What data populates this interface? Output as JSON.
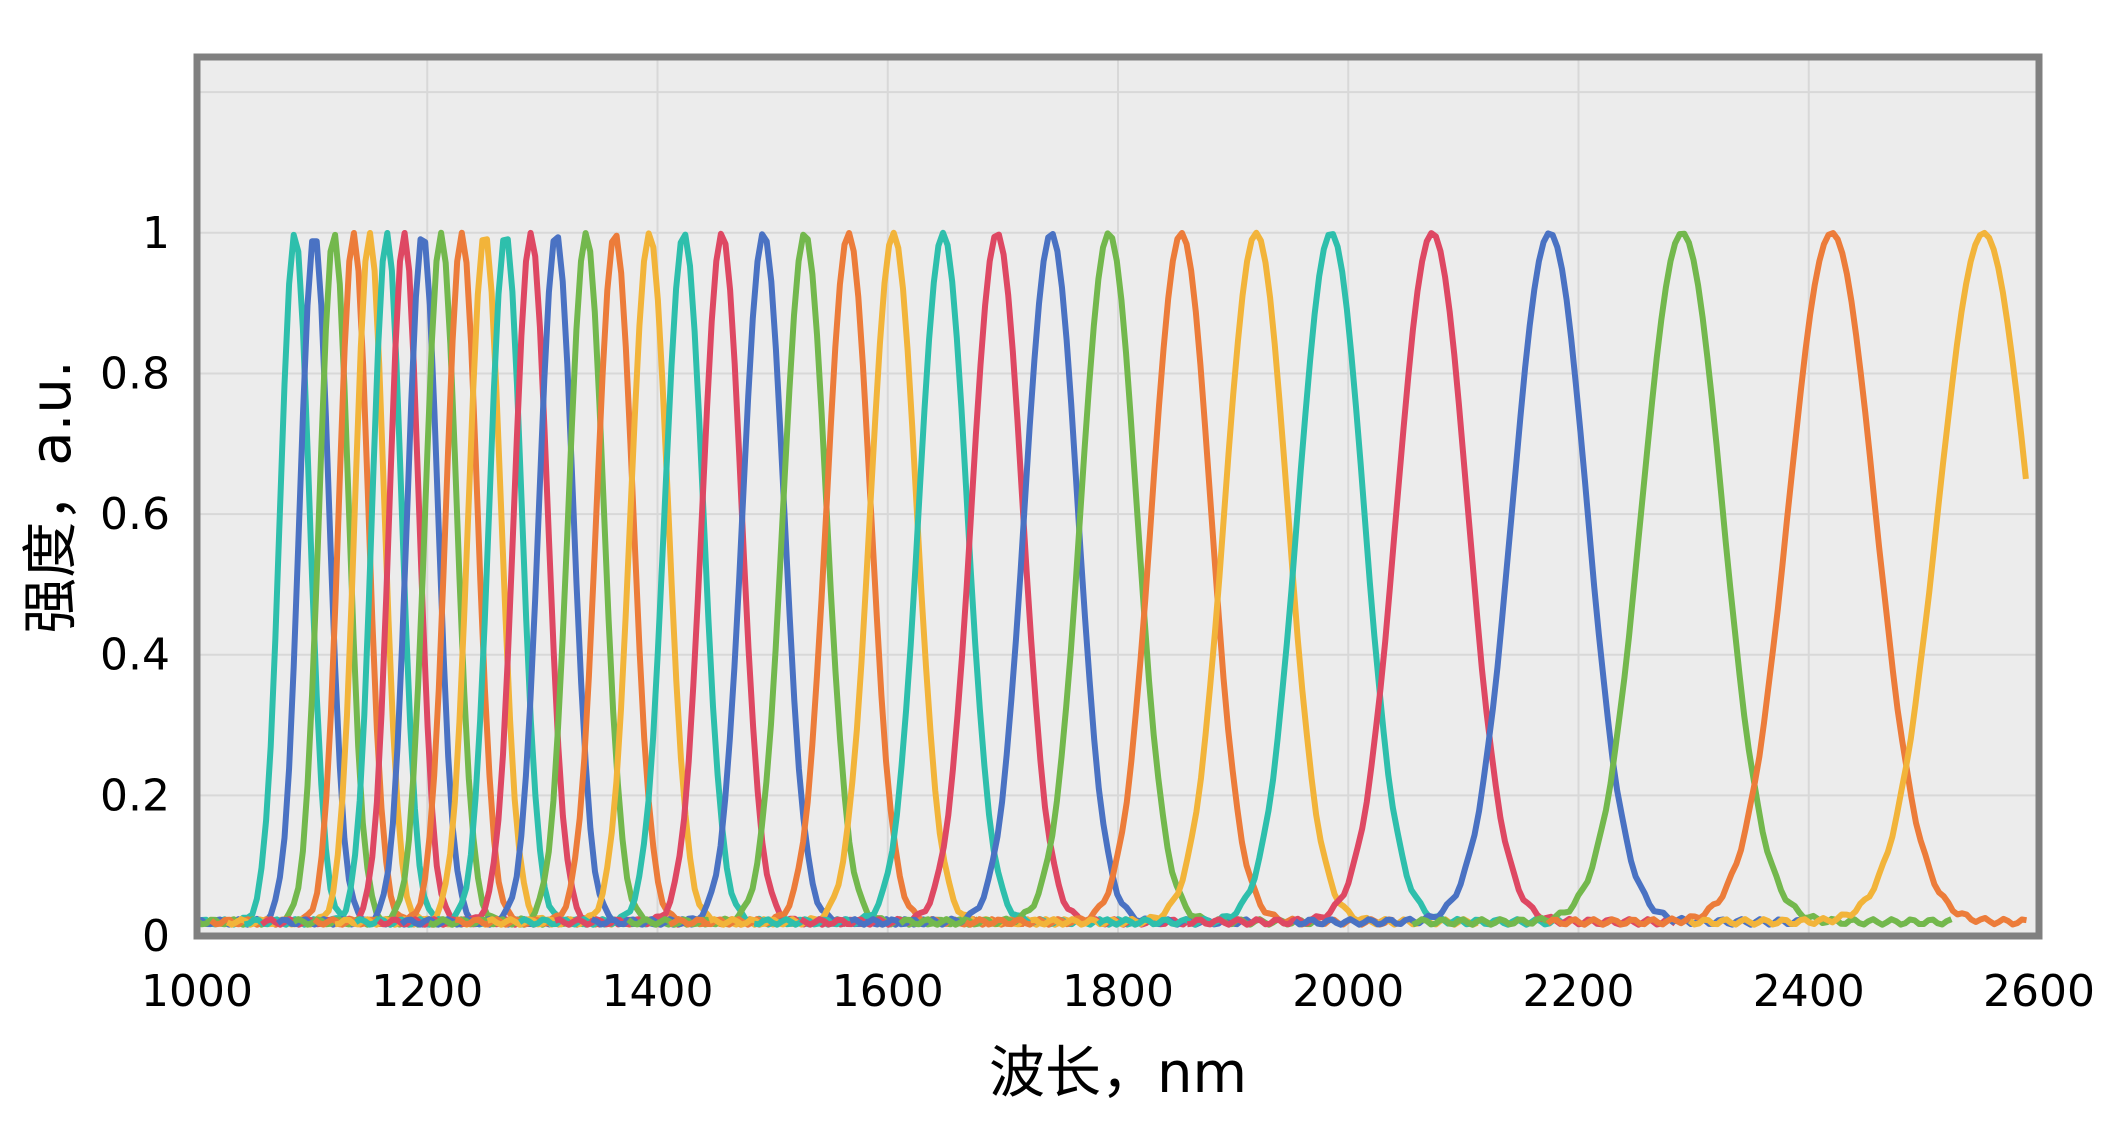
{
  "chart_data": {
    "type": "line",
    "title": "",
    "xlabel": "波长，nm",
    "ylabel": "强度，a.u.",
    "xlim": [
      1000,
      2600
    ],
    "ylim": [
      0,
      1.25
    ],
    "x_ticks": [
      1000,
      1200,
      1400,
      1600,
      1800,
      2000,
      2200,
      2400,
      2600
    ],
    "y_ticks": [
      0,
      0.2,
      0.4,
      0.6,
      0.8,
      1
    ],
    "x_tick_labels": [
      "1000",
      "1200",
      "1400",
      "1600",
      "1800",
      "2000",
      "2200",
      "2400",
      "2600"
    ],
    "y_tick_labels": [
      "0",
      "0.2",
      "0.4",
      "0.6",
      "0.8",
      "1"
    ],
    "grid": true,
    "legend": "none",
    "baseline": 0.02,
    "colors": {
      "teal": "#2ebfac",
      "blue": "#4a72c3",
      "green": "#73b84d",
      "orange": "#ec7c3a",
      "yellow": "#f2b43a",
      "red": "#de4863",
      "plot_bg": "#ececec",
      "frame": "#808080",
      "grid": "#d8d8d8"
    },
    "series": [
      {
        "center": 1085,
        "fwhm": 30,
        "color": "teal"
      },
      {
        "center": 1102,
        "fwhm": 30,
        "color": "blue"
      },
      {
        "center": 1119,
        "fwhm": 30,
        "color": "green"
      },
      {
        "center": 1136,
        "fwhm": 30,
        "color": "orange"
      },
      {
        "center": 1150,
        "fwhm": 30,
        "color": "yellow"
      },
      {
        "center": 1165,
        "fwhm": 30,
        "color": "teal"
      },
      {
        "center": 1180,
        "fwhm": 30,
        "color": "red"
      },
      {
        "center": 1196,
        "fwhm": 31,
        "color": "blue"
      },
      {
        "center": 1212,
        "fwhm": 32,
        "color": "green"
      },
      {
        "center": 1230,
        "fwhm": 32,
        "color": "orange"
      },
      {
        "center": 1250,
        "fwhm": 33,
        "color": "yellow"
      },
      {
        "center": 1268,
        "fwhm": 33,
        "color": "teal"
      },
      {
        "center": 1290,
        "fwhm": 34,
        "color": "red"
      },
      {
        "center": 1312,
        "fwhm": 35,
        "color": "blue"
      },
      {
        "center": 1338,
        "fwhm": 36,
        "color": "green"
      },
      {
        "center": 1363,
        "fwhm": 37,
        "color": "orange"
      },
      {
        "center": 1393,
        "fwhm": 38,
        "color": "yellow"
      },
      {
        "center": 1423,
        "fwhm": 39,
        "color": "teal"
      },
      {
        "center": 1456,
        "fwhm": 40,
        "color": "red"
      },
      {
        "center": 1492,
        "fwhm": 42,
        "color": "blue"
      },
      {
        "center": 1528,
        "fwhm": 44,
        "color": "green"
      },
      {
        "center": 1566,
        "fwhm": 45,
        "color": "orange"
      },
      {
        "center": 1605,
        "fwhm": 47,
        "color": "yellow"
      },
      {
        "center": 1648,
        "fwhm": 49,
        "color": "teal"
      },
      {
        "center": 1695,
        "fwhm": 52,
        "color": "red"
      },
      {
        "center": 1742,
        "fwhm": 54,
        "color": "blue"
      },
      {
        "center": 1792,
        "fwhm": 57,
        "color": "green"
      },
      {
        "center": 1855,
        "fwhm": 60,
        "color": "orange"
      },
      {
        "center": 1920,
        "fwhm": 64,
        "color": "yellow"
      },
      {
        "center": 1985,
        "fwhm": 67,
        "color": "teal"
      },
      {
        "center": 2073,
        "fwhm": 72,
        "color": "red"
      },
      {
        "center": 2175,
        "fwhm": 76,
        "color": "blue"
      },
      {
        "center": 2290,
        "fwhm": 82,
        "color": "green"
      },
      {
        "center": 2420,
        "fwhm": 88,
        "color": "orange"
      },
      {
        "center": 2552,
        "fwhm": 92,
        "color": "yellow"
      }
    ]
  }
}
